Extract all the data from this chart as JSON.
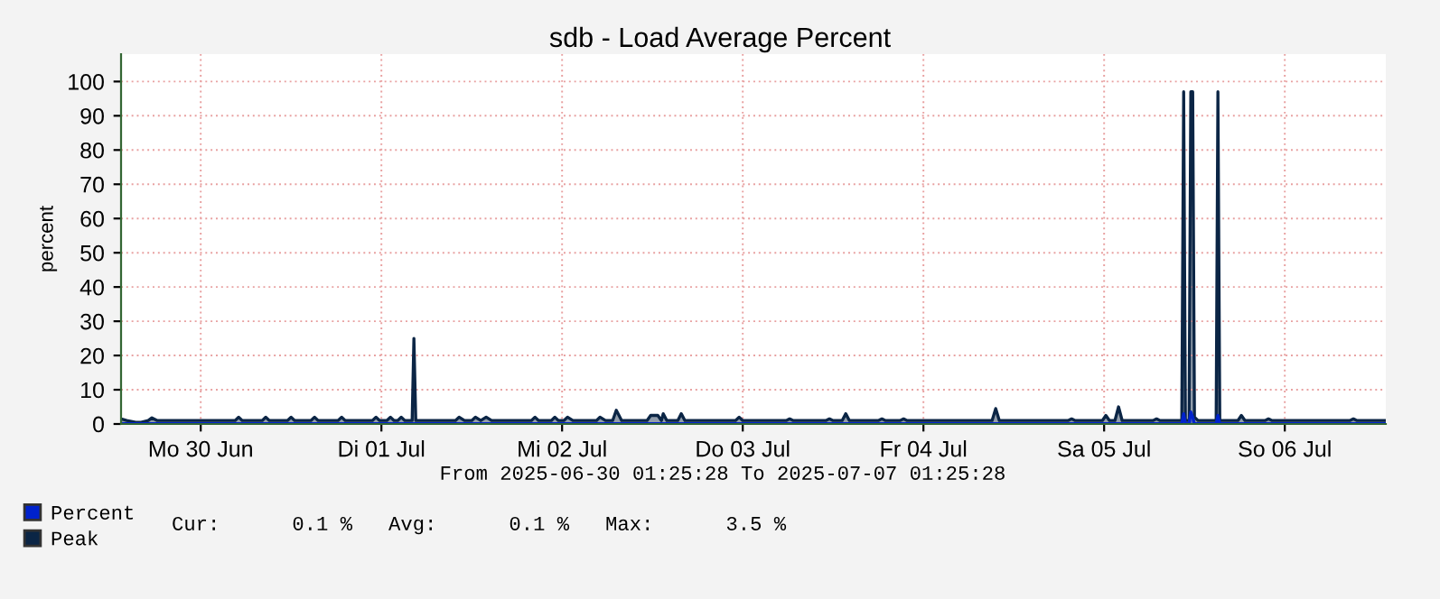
{
  "chart_data": {
    "type": "area",
    "title": "sdb - Load Average Percent",
    "ylabel": "percent",
    "xlim": [
      "2025-06-30T01:25",
      "2025-07-07T01:25"
    ],
    "xticks": [
      {
        "value": "2025-06-30T12:00",
        "label": "Mo 30 Jun"
      },
      {
        "value": "2025-07-01T12:00",
        "label": "Di 01 Jul"
      },
      {
        "value": "2025-07-02T12:00",
        "label": "Mi 02 Jul"
      },
      {
        "value": "2025-07-03T12:00",
        "label": "Do 03 Jul"
      },
      {
        "value": "2025-07-04T12:00",
        "label": "Fr 04 Jul"
      },
      {
        "value": "2025-07-05T12:00",
        "label": "Sa 05 Jul"
      },
      {
        "value": "2025-07-06T12:00",
        "label": "So 06 Jul"
      }
    ],
    "ylim": [
      0,
      108
    ],
    "yticks": [
      0,
      10,
      20,
      30,
      40,
      50,
      60,
      70,
      80,
      90,
      100
    ],
    "grid": true,
    "legend": "bottom left",
    "annotations": [
      "From 2025-06-30 01:25:28 To 2025-07-07 01:25:28",
      "Cur:      0.1 %   Avg:      0.1 %   Max:      3.5 %"
    ],
    "series": [
      {
        "name": "Peak",
        "color": "#0b2545",
        "x": [
          "2025-06-30T01:25",
          "2025-06-30T02:10",
          "2025-06-30T03:22",
          "2025-06-30T04:05",
          "2025-06-30T05:02",
          "2025-06-30T05:31",
          "2025-06-30T06:14",
          "2025-06-30T16:34",
          "2025-06-30T17:02",
          "2025-06-30T17:31",
          "2025-06-30T20:10",
          "2025-06-30T20:38",
          "2025-06-30T21:07",
          "2025-06-30T23:31",
          "2025-07-01T00:00",
          "2025-07-01T00:29",
          "2025-07-01T02:38",
          "2025-07-01T03:07",
          "2025-07-01T03:36",
          "2025-07-01T06:14",
          "2025-07-01T06:43",
          "2025-07-01T07:12",
          "2025-07-01T10:48",
          "2025-07-01T11:17",
          "2025-07-01T11:46",
          "2025-07-01T12:43",
          "2025-07-01T13:12",
          "2025-07-01T13:41",
          "2025-07-01T14:10",
          "2025-07-01T14:38",
          "2025-07-01T15:07",
          "2025-07-01T16:05",
          "2025-07-01T16:19",
          "2025-07-01T16:34",
          "2025-07-01T21:50",
          "2025-07-01T22:19",
          "2025-07-01T23:02",
          "2025-07-02T00:00",
          "2025-07-02T00:29",
          "2025-07-02T01:12",
          "2025-07-02T01:55",
          "2025-07-02T02:38",
          "2025-07-02T07:55",
          "2025-07-02T08:24",
          "2025-07-02T08:53",
          "2025-07-02T10:34",
          "2025-07-02T11:02",
          "2025-07-02T11:31",
          "2025-07-02T12:14",
          "2025-07-02T12:43",
          "2025-07-02T13:26",
          "2025-07-02T16:34",
          "2025-07-02T17:02",
          "2025-07-02T17:46",
          "2025-07-02T18:43",
          "2025-07-02T19:12",
          "2025-07-02T19:55",
          "2025-07-02T23:17",
          "2025-07-02T23:46",
          "2025-07-03T00:43",
          "2025-07-03T01:12",
          "2025-07-03T01:26",
          "2025-07-03T01:55",
          "2025-07-03T03:22",
          "2025-07-03T03:50",
          "2025-07-03T04:19",
          "2025-07-03T11:02",
          "2025-07-03T11:31",
          "2025-07-03T12:00",
          "2025-07-03T17:46",
          "2025-07-03T18:14",
          "2025-07-03T18:43",
          "2025-07-03T23:02",
          "2025-07-03T23:31",
          "2025-07-04T00:00",
          "2025-07-04T01:12",
          "2025-07-04T01:41",
          "2025-07-04T02:10",
          "2025-07-04T06:00",
          "2025-07-04T06:29",
          "2025-07-04T06:58",
          "2025-07-04T08:53",
          "2025-07-04T09:22",
          "2025-07-04T09:50",
          "2025-07-04T21:07",
          "2025-07-04T21:36",
          "2025-07-04T22:05",
          "2025-07-05T07:12",
          "2025-07-05T07:41",
          "2025-07-05T08:10",
          "2025-07-05T11:46",
          "2025-07-05T12:14",
          "2025-07-05T12:43",
          "2025-07-05T13:26",
          "2025-07-05T13:55",
          "2025-07-05T14:24",
          "2025-07-05T18:29",
          "2025-07-05T18:58",
          "2025-07-05T19:26",
          "2025-07-05T22:19",
          "2025-07-05T22:34",
          "2025-07-05T22:48",
          "2025-07-05T23:17",
          "2025-07-05T23:31",
          "2025-07-05T23:46",
          "2025-07-06T00:00",
          "2025-07-06T00:29",
          "2025-07-06T02:53",
          "2025-07-06T03:07",
          "2025-07-06T03:22",
          "2025-07-06T05:46",
          "2025-07-06T06:14",
          "2025-07-06T06:43",
          "2025-07-06T09:22",
          "2025-07-06T09:50",
          "2025-07-06T10:19",
          "2025-07-06T20:38",
          "2025-07-06T21:07",
          "2025-07-06T21:36",
          "2025-07-07T01:25"
        ],
        "values": [
          1.5,
          1,
          0.5,
          0.5,
          1,
          1.8,
          1,
          1,
          2,
          1,
          1,
          2,
          1,
          1,
          2,
          1,
          1,
          2,
          1,
          1,
          2,
          1,
          1,
          2,
          1,
          1,
          2,
          1,
          1,
          2,
          1,
          1,
          25,
          1,
          1,
          2,
          1,
          1,
          2,
          1,
          2,
          1,
          1,
          2,
          1,
          1,
          2,
          1,
          1,
          2,
          1,
          1,
          2,
          1,
          1,
          4,
          1,
          1,
          2.5,
          2.5,
          1,
          3,
          1,
          1,
          3,
          1,
          1,
          2,
          1,
          1,
          1.5,
          1,
          1,
          1.5,
          1,
          1,
          3,
          1,
          1,
          1.5,
          1,
          1,
          1.5,
          1,
          1,
          4.5,
          1,
          1,
          1.5,
          1,
          1,
          2.5,
          1,
          1,
          5,
          1,
          1,
          1.5,
          1,
          1,
          97,
          1,
          1,
          97,
          97,
          2,
          1,
          1,
          97,
          1,
          1,
          2.5,
          1,
          1,
          1.5,
          1,
          1,
          1.5,
          1,
          1
        ]
      },
      {
        "name": "Percent",
        "color": "#0022cc",
        "x": [
          "2025-06-30T01:25",
          "2025-07-05T22:19",
          "2025-07-05T22:34",
          "2025-07-05T22:48",
          "2025-07-05T23:17",
          "2025-07-05T23:31",
          "2025-07-05T23:46",
          "2025-07-06T00:00",
          "2025-07-06T02:53",
          "2025-07-06T03:07",
          "2025-07-06T03:22",
          "2025-07-07T01:25"
        ],
        "values": [
          0.1,
          0.1,
          3,
          0.1,
          0.1,
          3.5,
          2,
          0.1,
          0.1,
          2.5,
          0.1,
          0.1
        ]
      }
    ]
  }
}
